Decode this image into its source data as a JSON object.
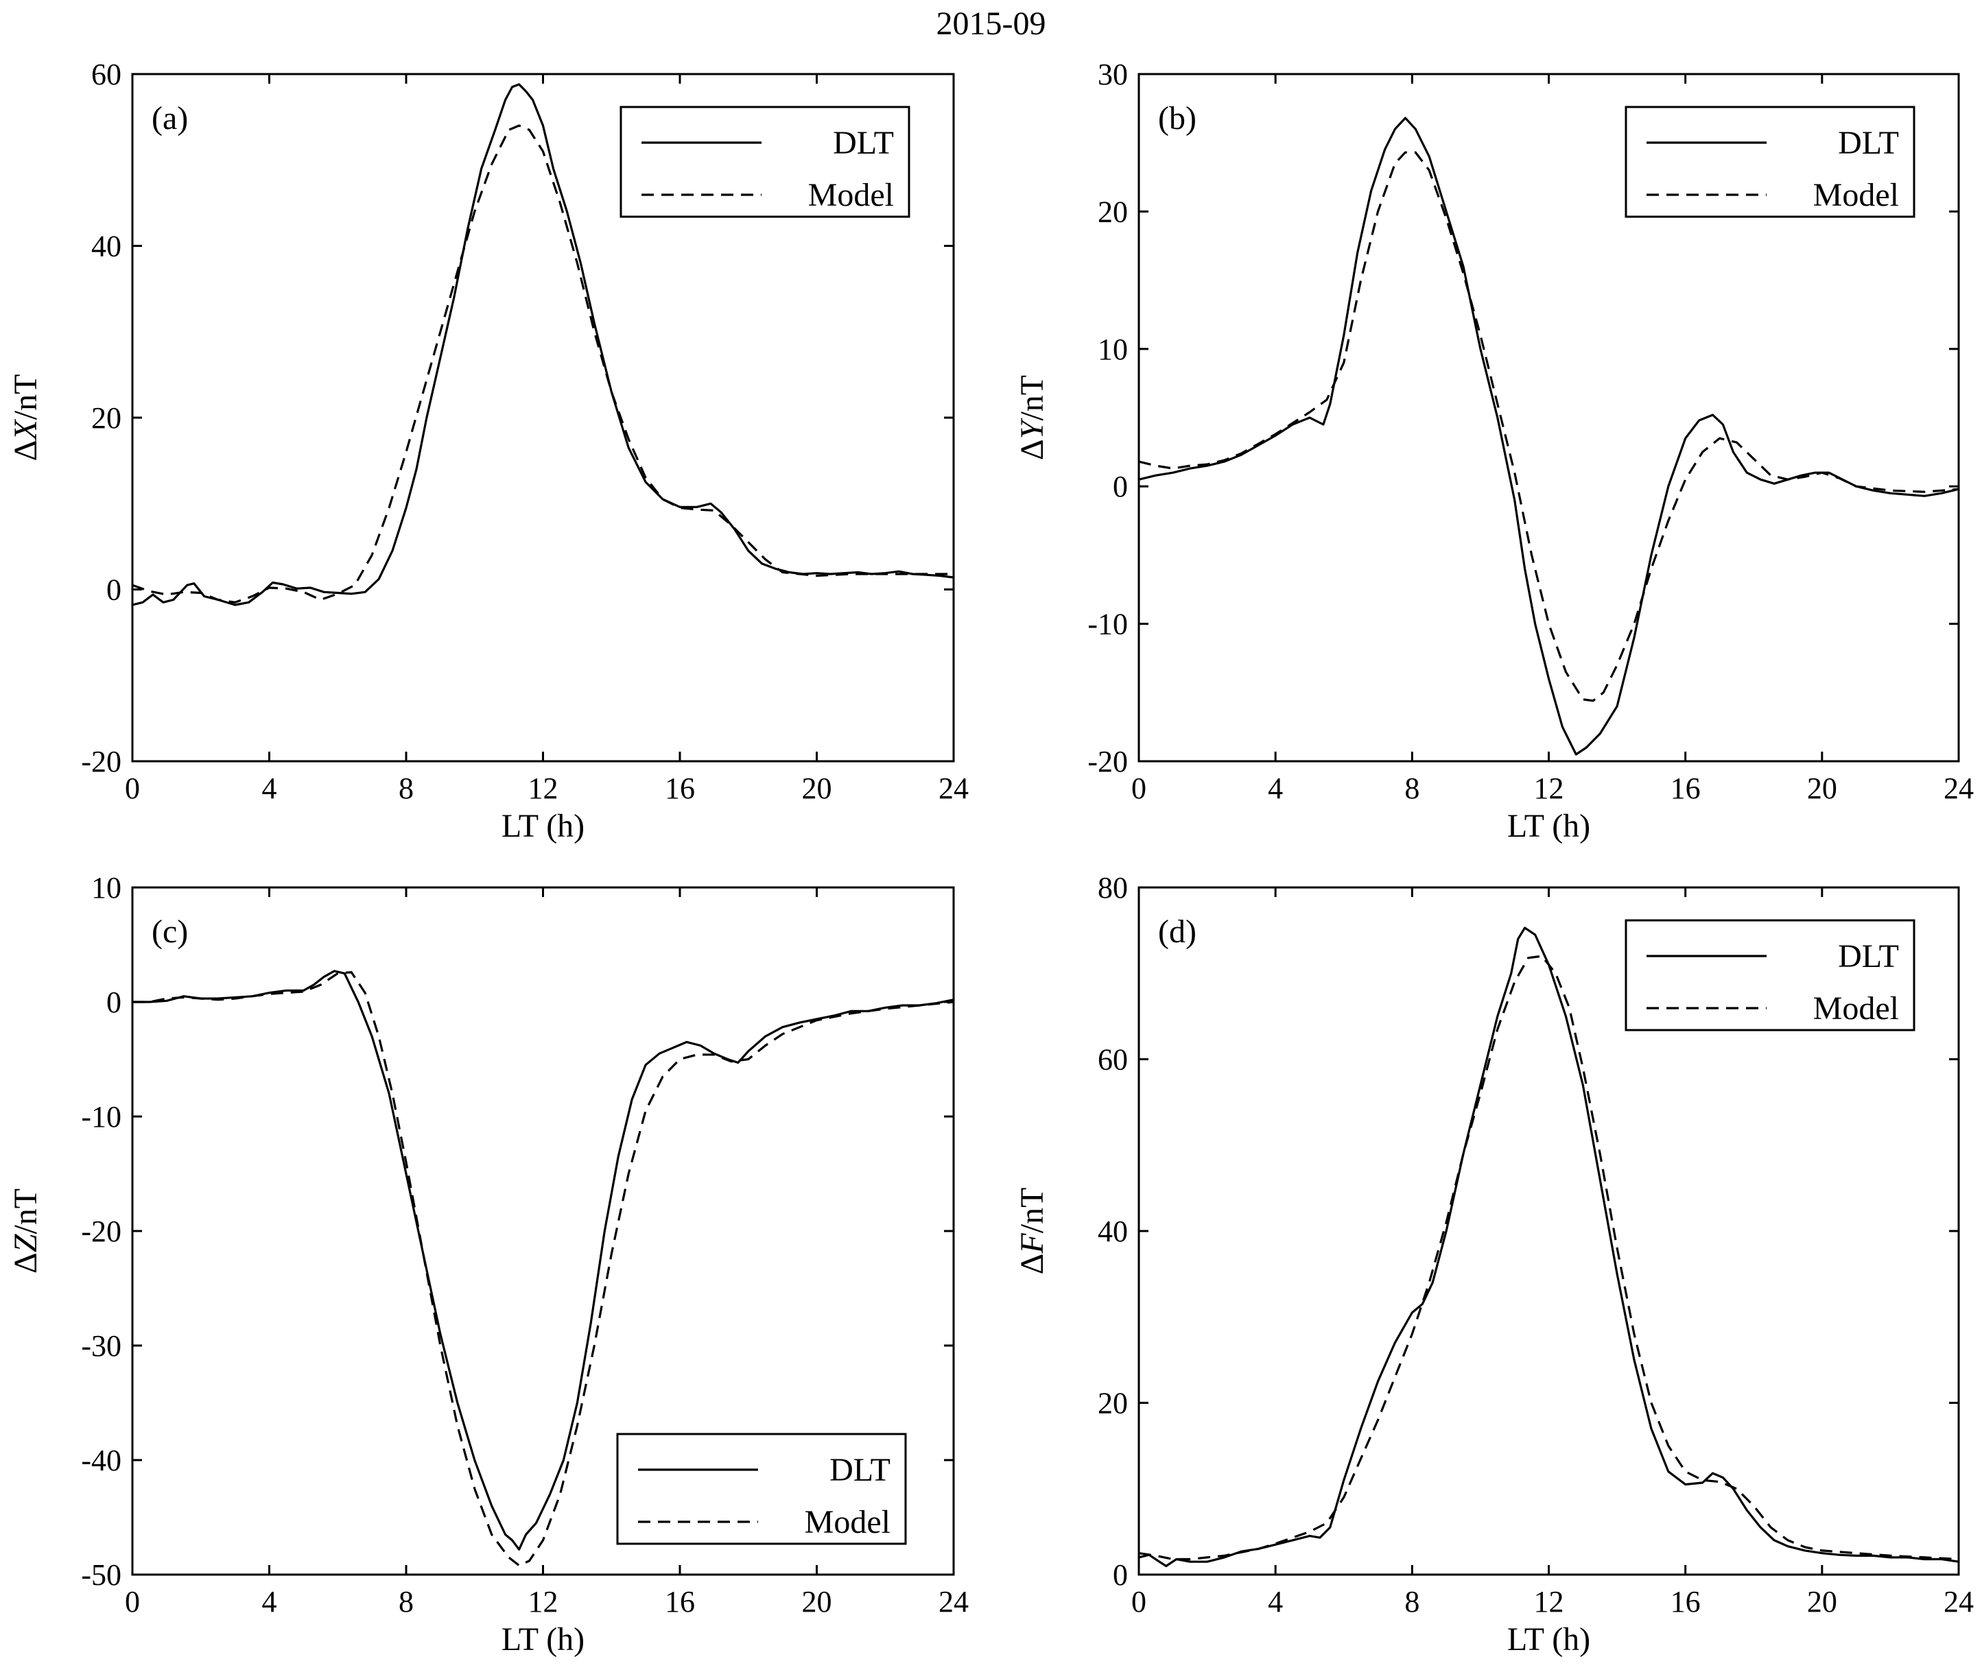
{
  "figure": {
    "title": "2015-09"
  },
  "colors": {
    "line": "#000000",
    "background": "#ffffff"
  },
  "chart_data": [
    {
      "type": "line",
      "panel_label": "(a)",
      "xlabel": "LT (h)",
      "ylabel_prefix": "Δ",
      "ylabel_var": "X",
      "ylabel_suffix": "/nT",
      "xlim": [
        0,
        24
      ],
      "ylim": [
        -20,
        60
      ],
      "xticks": [
        0,
        4,
        8,
        12,
        16,
        20,
        24
      ],
      "yticks": [
        -20,
        0,
        20,
        40,
        60
      ],
      "legend_position": "top-right",
      "grid": false,
      "series": [
        {
          "name": "DLT",
          "style": "solid",
          "x": [
            0,
            0.3,
            0.6,
            0.9,
            1.2,
            1.6,
            1.8,
            2.1,
            2.5,
            3,
            3.4,
            3.8,
            4.1,
            4.4,
            4.8,
            5.2,
            5.6,
            6,
            6.4,
            6.8,
            7.2,
            7.6,
            8,
            8.3,
            8.6,
            9,
            9.4,
            9.8,
            10.2,
            10.6,
            10.9,
            11.1,
            11.3,
            11.5,
            11.7,
            12,
            12.3,
            12.7,
            13.1,
            13.5,
            14,
            14.5,
            15,
            15.5,
            16,
            16.5,
            16.9,
            17.2,
            17.6,
            18,
            18.4,
            18.8,
            19.2,
            19.6,
            20,
            20.4,
            20.8,
            21.2,
            21.6,
            22,
            22.4,
            22.8,
            23.2,
            23.6,
            24
          ],
          "y": [
            -1.8,
            -1.5,
            -0.6,
            -1.5,
            -1.2,
            0.5,
            0.7,
            -0.8,
            -1.2,
            -1.8,
            -1.5,
            -0.3,
            0.8,
            0.6,
            0.1,
            0.2,
            -0.3,
            -0.4,
            -0.5,
            -0.3,
            1.2,
            4.5,
            9.5,
            14,
            20,
            27,
            34,
            42,
            49,
            53.5,
            57,
            58.5,
            58.8,
            58,
            57,
            54,
            49,
            44,
            38,
            31,
            23,
            16.5,
            12.5,
            10.5,
            9.6,
            9.6,
            10,
            9,
            7,
            4.5,
            3,
            2.4,
            2,
            1.8,
            1.9,
            1.8,
            1.9,
            2,
            1.8,
            1.9,
            2.1,
            1.8,
            1.7,
            1.6,
            1.4
          ]
        },
        {
          "name": "Model",
          "style": "dashed",
          "x": [
            0,
            0.5,
            1,
            1.5,
            2,
            2.5,
            3,
            3.5,
            4,
            4.5,
            5,
            5.5,
            6,
            6.5,
            7,
            7.5,
            8,
            8.5,
            9,
            9.5,
            10,
            10.5,
            11,
            11.3,
            11.6,
            12,
            12.5,
            13,
            13.5,
            14,
            14.5,
            15,
            15.5,
            16,
            16.5,
            17,
            17.5,
            18,
            18.5,
            19,
            20,
            21,
            22,
            23,
            24
          ],
          "y": [
            0.5,
            -0.2,
            -0.6,
            -0.3,
            -0.4,
            -1.2,
            -1.5,
            -0.8,
            0.2,
            0.1,
            -0.3,
            -1.2,
            -0.5,
            0.5,
            4,
            9.5,
            16,
            23,
            30,
            37,
            44,
            49.5,
            53.5,
            54,
            53.5,
            51,
            45,
            38,
            30,
            23,
            17.5,
            13,
            10.5,
            9.5,
            9.3,
            9.2,
            7.5,
            5.5,
            3.5,
            2,
            1.6,
            1.8,
            1.8,
            1.8,
            1.8
          ]
        }
      ]
    },
    {
      "type": "line",
      "panel_label": "(b)",
      "xlabel": "LT (h)",
      "ylabel_prefix": "Δ",
      "ylabel_var": "Y",
      "ylabel_suffix": "/nT",
      "xlim": [
        0,
        24
      ],
      "ylim": [
        -20,
        30
      ],
      "xticks": [
        0,
        4,
        8,
        12,
        16,
        20,
        24
      ],
      "yticks": [
        -20,
        -10,
        0,
        10,
        20,
        30
      ],
      "legend_position": "top-right",
      "grid": false,
      "series": [
        {
          "name": "DLT",
          "style": "solid",
          "x": [
            0,
            0.5,
            1,
            1.5,
            2,
            2.5,
            3,
            3.5,
            4,
            4.5,
            5,
            5.4,
            5.6,
            6,
            6.4,
            6.8,
            7.2,
            7.5,
            7.8,
            8.1,
            8.5,
            9,
            9.5,
            10,
            10.5,
            11,
            11.3,
            11.6,
            12,
            12.4,
            12.8,
            13.1,
            13.5,
            14,
            14.5,
            15,
            15.5,
            16,
            16.4,
            16.8,
            17.1,
            17.4,
            17.8,
            18.2,
            18.6,
            19,
            19.4,
            19.8,
            20.2,
            20.6,
            21,
            21.5,
            22,
            22.5,
            23,
            23.5,
            24
          ],
          "y": [
            0.5,
            0.8,
            1,
            1.3,
            1.5,
            1.8,
            2.3,
            3,
            3.7,
            4.5,
            5,
            4.5,
            6,
            11,
            17,
            21.5,
            24.5,
            26,
            26.8,
            26,
            24,
            20,
            16,
            10,
            5,
            -1,
            -6,
            -10,
            -14,
            -17.5,
            -19.5,
            -19,
            -18,
            -16,
            -11,
            -5,
            0,
            3.5,
            4.8,
            5.2,
            4.5,
            2.5,
            1,
            0.5,
            0.2,
            0.5,
            0.8,
            1,
            1,
            0.5,
            0,
            -0.3,
            -0.5,
            -0.6,
            -0.7,
            -0.5,
            -0.2
          ]
        },
        {
          "name": "Model",
          "style": "dashed",
          "x": [
            0,
            0.5,
            1,
            1.5,
            2,
            2.5,
            3,
            3.5,
            4,
            4.5,
            5,
            5.5,
            6,
            6.5,
            7,
            7.5,
            7.8,
            8.1,
            8.5,
            9,
            9.5,
            10,
            10.5,
            11,
            11.5,
            12,
            12.5,
            13,
            13.3,
            13.6,
            14,
            14.5,
            15,
            15.5,
            16,
            16.5,
            17,
            17.5,
            18,
            18.5,
            19,
            19.5,
            20,
            20.5,
            21,
            22,
            23,
            24
          ],
          "y": [
            1.8,
            1.5,
            1.3,
            1.5,
            1.6,
            1.9,
            2.4,
            3.1,
            3.8,
            4.6,
            5.4,
            6.3,
            9,
            15,
            20,
            23.5,
            24.3,
            24.3,
            23,
            19.5,
            15.5,
            11,
            6,
            1,
            -5,
            -10,
            -13.5,
            -15.5,
            -15.6,
            -15,
            -13,
            -10,
            -6,
            -2.5,
            0.5,
            2.5,
            3.5,
            3.2,
            2,
            0.8,
            0.5,
            0.7,
            1,
            0.6,
            0,
            -0.3,
            -0.4,
            -0.2
          ]
        }
      ]
    },
    {
      "type": "line",
      "panel_label": "(c)",
      "xlabel": "LT (h)",
      "ylabel_prefix": "Δ",
      "ylabel_var": "Z",
      "ylabel_suffix": "/nT",
      "xlim": [
        0,
        24
      ],
      "ylim": [
        -50,
        10
      ],
      "xticks": [
        0,
        4,
        8,
        12,
        16,
        20,
        24
      ],
      "yticks": [
        -50,
        -40,
        -30,
        -20,
        -10,
        0,
        10
      ],
      "legend_position": "bottom-right",
      "grid": false,
      "series": [
        {
          "name": "DLT",
          "style": "solid",
          "x": [
            0,
            0.5,
            1,
            1.5,
            2,
            2.5,
            3,
            3.5,
            4,
            4.5,
            5,
            5.3,
            5.6,
            5.9,
            6.2,
            6.6,
            7,
            7.5,
            8,
            8.5,
            9,
            9.5,
            10,
            10.5,
            10.9,
            11.1,
            11.3,
            11.5,
            11.8,
            12.2,
            12.6,
            13,
            13.4,
            13.8,
            14.2,
            14.6,
            15,
            15.4,
            15.8,
            16.2,
            16.6,
            17,
            17.4,
            17.7,
            18,
            18.5,
            19,
            19.5,
            20,
            20.5,
            21,
            21.5,
            22,
            22.5,
            23,
            23.5,
            24
          ],
          "y": [
            0,
            0,
            0.1,
            0.5,
            0.3,
            0.3,
            0.4,
            0.5,
            0.8,
            1,
            1,
            1.5,
            2.2,
            2.7,
            2.5,
            0,
            -3,
            -8,
            -15,
            -22,
            -29,
            -35,
            -40,
            -44,
            -46.5,
            -47,
            -47.8,
            -46.5,
            -45.5,
            -43,
            -40,
            -35,
            -28,
            -20,
            -13.5,
            -8.5,
            -5.5,
            -4.5,
            -4,
            -3.5,
            -3.8,
            -4.5,
            -5,
            -5.3,
            -4.3,
            -3,
            -2.2,
            -1.8,
            -1.5,
            -1.2,
            -0.8,
            -0.8,
            -0.5,
            -0.3,
            -0.3,
            -0.1,
            0.2
          ]
        },
        {
          "name": "Model",
          "style": "dashed",
          "x": [
            0,
            0.5,
            1,
            1.5,
            2,
            2.5,
            3,
            3.5,
            4,
            4.5,
            5,
            5.5,
            6,
            6.4,
            6.8,
            7.2,
            7.6,
            8,
            8.5,
            9,
            9.5,
            10,
            10.5,
            11,
            11.3,
            11.6,
            12,
            12.5,
            13,
            13.5,
            14,
            14.5,
            15,
            15.5,
            16,
            16.5,
            17,
            17.5,
            18,
            18.5,
            19,
            19.5,
            20,
            21,
            22,
            23,
            24
          ],
          "y": [
            0,
            0,
            0.3,
            0.4,
            0.3,
            0.2,
            0.3,
            0.5,
            0.7,
            0.8,
            0.9,
            1.5,
            2.5,
            2.6,
            0.8,
            -3,
            -8,
            -14,
            -22,
            -30,
            -37,
            -42.5,
            -46.5,
            -48.5,
            -49.2,
            -48.8,
            -47,
            -43,
            -37,
            -30,
            -22,
            -15,
            -9.5,
            -6.5,
            -5,
            -4.6,
            -4.6,
            -5.2,
            -5,
            -3.8,
            -2.8,
            -2.2,
            -1.6,
            -1,
            -0.6,
            -0.3,
            0
          ]
        }
      ]
    },
    {
      "type": "line",
      "panel_label": "(d)",
      "xlabel": "LT (h)",
      "ylabel_prefix": "Δ",
      "ylabel_var": "F",
      "ylabel_suffix": "/nT",
      "xlim": [
        0,
        24
      ],
      "ylim": [
        0,
        80
      ],
      "xticks": [
        0,
        4,
        8,
        12,
        16,
        20,
        24
      ],
      "yticks": [
        0,
        20,
        40,
        60,
        80
      ],
      "legend_position": "top-right",
      "grid": false,
      "series": [
        {
          "name": "DLT",
          "style": "solid",
          "x": [
            0,
            0.3,
            0.6,
            0.8,
            1.1,
            1.5,
            2,
            2.5,
            3,
            3.5,
            4,
            4.5,
            5,
            5.3,
            5.6,
            6,
            6.5,
            7,
            7.5,
            8,
            8.3,
            8.6,
            9,
            9.5,
            10,
            10.5,
            10.9,
            11.1,
            11.3,
            11.6,
            12,
            12.5,
            13,
            13.5,
            14,
            14.5,
            15,
            15.5,
            16,
            16.5,
            16.8,
            17.1,
            17.4,
            17.8,
            18.2,
            18.6,
            19,
            19.5,
            20,
            20.5,
            21,
            21.5,
            22,
            22.5,
            23,
            23.5,
            24
          ],
          "y": [
            2,
            2.3,
            1.5,
            1,
            1.8,
            1.5,
            1.5,
            2,
            2.7,
            3,
            3.5,
            4,
            4.5,
            4.3,
            5.5,
            11,
            17,
            22.5,
            27,
            30.5,
            31.5,
            34,
            40,
            49,
            57,
            65,
            70,
            74,
            75.3,
            74.5,
            71,
            65,
            57,
            46,
            35,
            25,
            17,
            12,
            10.5,
            10.7,
            11.8,
            11.3,
            10,
            7.5,
            5.5,
            4,
            3.3,
            2.8,
            2.5,
            2.3,
            2.2,
            2.2,
            2,
            2,
            1.8,
            1.8,
            1.5
          ]
        },
        {
          "name": "Model",
          "style": "dashed",
          "x": [
            0,
            0.5,
            1,
            1.5,
            2,
            2.5,
            3,
            3.5,
            4,
            4.5,
            5,
            5.5,
            6,
            6.5,
            7,
            7.5,
            8,
            8.5,
            9,
            9.5,
            10,
            10.5,
            11,
            11.4,
            11.8,
            12.2,
            12.6,
            13,
            13.5,
            14,
            14.5,
            15,
            15.5,
            16,
            16.5,
            17,
            17.5,
            18,
            18.5,
            19,
            19.5,
            20,
            21,
            22,
            23,
            24
          ],
          "y": [
            2.5,
            2.2,
            1.8,
            1.8,
            2,
            2.2,
            2.6,
            3,
            3.6,
            4.3,
            5,
            6,
            9,
            13.5,
            18,
            23,
            28,
            34,
            41,
            49,
            56,
            63.5,
            69,
            71.8,
            72,
            70,
            66,
            59,
            49,
            38,
            28,
            20,
            15,
            12,
            11,
            10.8,
            10,
            8,
            5.5,
            4,
            3.2,
            2.8,
            2.5,
            2.2,
            2,
            1.8
          ]
        }
      ]
    }
  ]
}
